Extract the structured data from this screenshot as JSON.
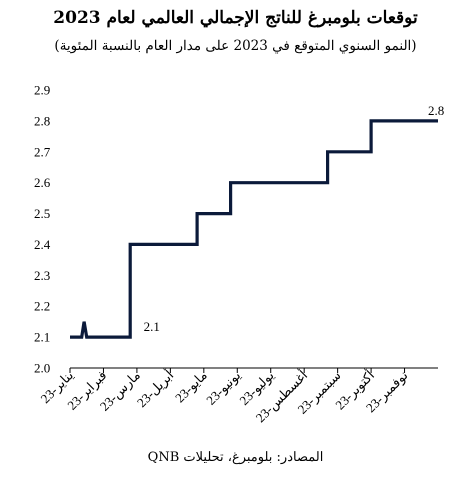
{
  "title": "توقعات بلومبرغ للناتج الإجمالي العالمي لعام 2023",
  "subtitle": "(النمو السنوي المتوقع في 2023 على مدار العام بالنسبة المئوية)",
  "source": "المصادر: بلومبرغ، تحليلات QNB",
  "chart_data": {
    "type": "line",
    "title": "توقعات بلومبرغ للناتج الإجمالي العالمي لعام 2023",
    "subtitle": "(النمو السنوي المتوقع في 2023 على مدار العام بالنسبة المئوية)",
    "categories": [
      "يناير-23",
      "فبراير-23",
      "مارس-23",
      "أبريل-23",
      "مايو-23",
      "يونيو-23",
      "يوليو-23",
      "أغسطس-23",
      "سبتمبر-23",
      "أكتوبر-23",
      "نوفمبر-23"
    ],
    "ylim": [
      2.0,
      2.9
    ],
    "yticks": [
      "2.0",
      "2.1",
      "2.2",
      "2.3",
      "2.4",
      "2.5",
      "2.6",
      "2.7",
      "2.8",
      "2.9"
    ],
    "grid": false,
    "series": [
      {
        "points": [
          [
            0.0,
            2.1
          ],
          [
            0.35,
            2.1
          ],
          [
            0.42,
            2.15
          ],
          [
            0.5,
            2.1
          ],
          [
            1.8,
            2.1
          ],
          [
            1.8,
            2.4
          ],
          [
            3.8,
            2.4
          ],
          [
            3.8,
            2.5
          ],
          [
            4.8,
            2.5
          ],
          [
            4.8,
            2.6
          ],
          [
            7.7,
            2.6
          ],
          [
            7.7,
            2.7
          ],
          [
            9.0,
            2.7
          ],
          [
            9.0,
            2.8
          ],
          [
            11.0,
            2.8
          ]
        ]
      }
    ],
    "annotations": [
      {
        "text": "2.1",
        "x": 2.2,
        "y": 2.1
      },
      {
        "text": "2.8",
        "x": 10.7,
        "y": 2.8
      }
    ]
  }
}
